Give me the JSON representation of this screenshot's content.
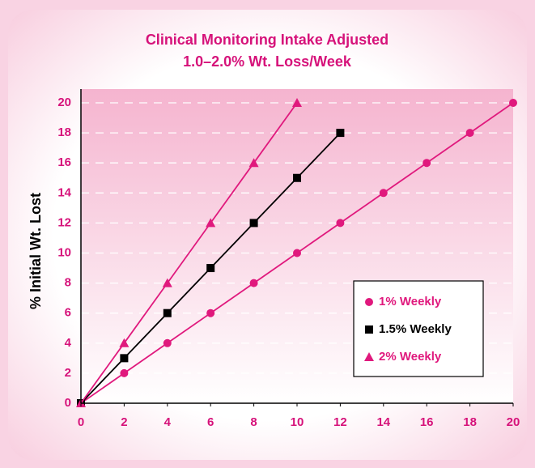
{
  "chart_data": {
    "type": "line",
    "title": "Clinical Monitoring Intake Adjusted",
    "subtitle": "1.0–2.0% Wt. Loss/Week",
    "ylabel": "% Initial Wt. Lost",
    "xlim": [
      0,
      20
    ],
    "xticks": [
      0,
      2,
      4,
      6,
      8,
      10,
      12,
      14,
      16,
      18,
      20
    ],
    "ylim": [
      0,
      20
    ],
    "yticks": [
      0,
      2,
      4,
      6,
      8,
      10,
      12,
      14,
      16,
      18,
      20
    ],
    "grid": true,
    "legend": "lower right",
    "series": [
      {
        "name": "1% Weekly",
        "color": "#e0197d",
        "marker": "circle",
        "x": [
          0,
          2,
          4,
          6,
          8,
          10,
          12,
          14,
          16,
          18,
          20
        ],
        "values": [
          0,
          2,
          4,
          6,
          8,
          10,
          12,
          14,
          16,
          18,
          20
        ]
      },
      {
        "name": "1.5% Weekly",
        "color": "#000000",
        "marker": "square",
        "x": [
          0,
          2,
          4,
          6,
          8,
          10,
          12
        ],
        "values": [
          0,
          3,
          6,
          9,
          12,
          15,
          18
        ]
      },
      {
        "name": "2% Weekly",
        "color": "#e0197d",
        "marker": "triangle",
        "x": [
          0,
          2,
          4,
          6,
          8,
          10
        ],
        "values": [
          0,
          4,
          8,
          12,
          16,
          20
        ]
      }
    ]
  }
}
